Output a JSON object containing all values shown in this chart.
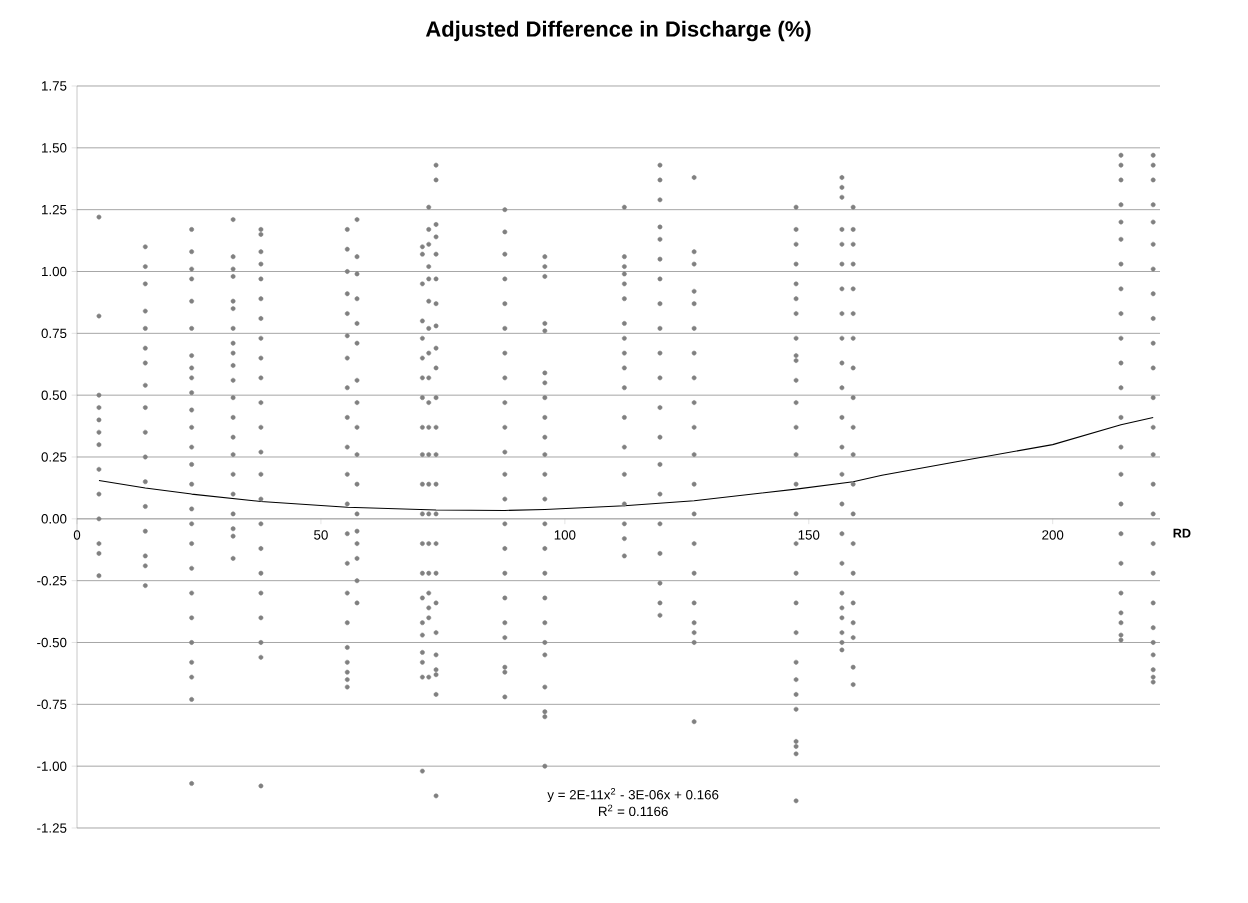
{
  "chart_data": {
    "type": "scatter",
    "title": "Adjusted Difference in Discharge (%)",
    "xlabel": "RD",
    "xlim": [
      0,
      222
    ],
    "xticks": [
      0,
      50,
      100,
      150,
      200
    ],
    "ylim": [
      -1.25,
      1.75
    ],
    "yticks": [
      {
        "value": -1.25,
        "label": "-1.25"
      },
      {
        "value": -1.0,
        "label": "-1.00"
      },
      {
        "value": -0.75,
        "label": "-0.75"
      },
      {
        "value": -0.5,
        "label": "-0.50"
      },
      {
        "value": -0.25,
        "label": "-0.25"
      },
      {
        "value": 0,
        "label": "0.00"
      },
      {
        "value": 0.25,
        "label": "0.25"
      },
      {
        "value": 0.5,
        "label": "0.50"
      },
      {
        "value": 0.75,
        "label": "0.75"
      },
      {
        "value": 1.0,
        "label": "1.00"
      },
      {
        "value": 1.25,
        "label": "1.25"
      },
      {
        "value": 1.5,
        "label": "1.50"
      },
      {
        "value": 1.75,
        "label": "1.75"
      }
    ],
    "grid": "y",
    "marker": "circle",
    "annotations": [
      "y = 2E-11x$^{2}$ - 3E-06x + 0.166",
      "R$^{2}$ = 0.1166"
    ],
    "series": [
      {
        "color": "#808080",
        "x": [
          4.5,
          4.5,
          4.5,
          4.5,
          4.5,
          4.5,
          4.5,
          4.5,
          4.5,
          4.5,
          4.5,
          4.5,
          4.5
        ],
        "values": [
          1.22,
          0.82,
          0.5,
          0.45,
          0.4,
          0.35,
          0.3,
          0.2,
          0.1,
          0.0,
          -0.1,
          -0.14,
          -0.23
        ]
      },
      {
        "color": "#808080",
        "x": [
          14,
          14,
          14,
          14,
          14,
          14,
          14,
          14,
          14,
          14,
          14,
          14,
          14,
          14,
          14,
          14,
          14
        ],
        "values": [
          1.1,
          1.02,
          0.95,
          0.84,
          0.77,
          0.69,
          0.63,
          0.54,
          0.45,
          0.35,
          0.25,
          0.15,
          0.05,
          -0.05,
          -0.15,
          -0.19,
          -0.27
        ]
      },
      {
        "color": "#808080",
        "x": [
          23.5,
          23.5,
          23.5,
          23.5,
          23.5,
          23.5,
          23.5,
          23.5,
          23.5,
          23.5,
          23.5,
          23.5,
          23.5,
          23.5,
          23.5,
          23.5,
          23.5,
          23.5,
          23.5,
          23.5,
          23.5,
          23.5,
          23.5,
          23.5,
          23.5,
          23.5
        ],
        "values": [
          1.17,
          1.08,
          1.01,
          0.97,
          0.88,
          0.77,
          0.66,
          0.61,
          0.57,
          0.51,
          0.44,
          0.37,
          0.29,
          0.22,
          0.14,
          0.04,
          -0.02,
          -0.1,
          -0.2,
          -0.3,
          -0.4,
          -0.5,
          -0.58,
          -0.64,
          -0.73,
          -1.07
        ]
      },
      {
        "color": "#808080",
        "x": [
          32,
          32,
          32,
          32,
          32,
          32,
          32,
          32,
          32,
          32,
          32,
          32,
          32,
          32,
          32,
          32,
          32,
          32,
          32,
          32,
          32
        ],
        "values": [
          1.21,
          1.06,
          1.01,
          0.98,
          0.88,
          0.85,
          0.77,
          0.71,
          0.67,
          0.62,
          0.56,
          0.49,
          0.41,
          0.33,
          0.26,
          0.18,
          0.1,
          0.02,
          -0.04,
          -0.07,
          -0.16
        ]
      },
      {
        "color": "#808080",
        "x": [
          37.7,
          37.7,
          37.7,
          37.7,
          37.7,
          37.7,
          37.7,
          37.7,
          37.7,
          37.7,
          37.7,
          37.7,
          37.7,
          37.7,
          37.7,
          37.7,
          37.7,
          37.7,
          37.7,
          37.7,
          37.7,
          37.7,
          37.7
        ],
        "values": [
          1.17,
          1.15,
          1.08,
          1.03,
          0.97,
          0.89,
          0.81,
          0.73,
          0.65,
          0.57,
          0.47,
          0.37,
          0.27,
          0.18,
          0.08,
          -0.02,
          -0.12,
          -0.22,
          -0.3,
          -0.4,
          -0.5,
          -0.56,
          -1.08
        ]
      },
      {
        "color": "#808080",
        "x": [
          55.4,
          55.4,
          55.4,
          55.4,
          55.4,
          55.4,
          55.4,
          55.4,
          55.4,
          55.4,
          55.4,
          55.4,
          55.4,
          55.4,
          55.4,
          55.4,
          55.4,
          55.4,
          55.4,
          55.4,
          55.4
        ],
        "values": [
          1.17,
          1.09,
          1.0,
          0.91,
          0.83,
          0.74,
          0.65,
          0.53,
          0.41,
          0.29,
          0.18,
          0.06,
          -0.06,
          -0.18,
          -0.3,
          -0.42,
          -0.52,
          -0.58,
          -0.62,
          -0.65,
          -0.68
        ]
      },
      {
        "color": "#808080",
        "x": [
          57.4,
          57.4,
          57.4,
          57.4,
          57.4,
          57.4,
          57.4,
          57.4,
          57.4,
          57.4,
          57.4,
          57.4,
          57.4,
          57.4,
          57.4,
          57.4,
          57.4
        ],
        "values": [
          1.21,
          1.06,
          0.99,
          0.89,
          0.79,
          0.71,
          0.56,
          0.47,
          0.37,
          0.26,
          0.14,
          0.02,
          -0.05,
          -0.1,
          -0.16,
          -0.25,
          -0.34
        ]
      },
      {
        "color": "#808080",
        "x": [
          70.8,
          70.8,
          70.8,
          70.8,
          70.8,
          70.8,
          70.8,
          70.8,
          70.8,
          70.8,
          70.8,
          70.8,
          70.8,
          70.8,
          70.8,
          70.8,
          70.8,
          70.8,
          70.8,
          70.8,
          70.8
        ],
        "values": [
          1.1,
          1.07,
          0.95,
          0.8,
          0.73,
          0.65,
          0.57,
          0.49,
          0.37,
          0.26,
          0.14,
          0.02,
          -0.1,
          -0.22,
          -0.32,
          -0.42,
          -0.47,
          -0.54,
          -0.58,
          -0.64,
          -1.02
        ]
      },
      {
        "color": "#808080",
        "x": [
          72.1,
          72.1,
          72.1,
          72.1,
          72.1,
          72.1,
          72.1,
          72.1,
          72.1,
          72.1,
          72.1,
          72.1,
          72.1,
          72.1,
          72.1,
          72.1,
          72.1,
          72.1,
          72.1,
          72.1
        ],
        "values": [
          1.26,
          1.17,
          1.11,
          1.02,
          0.97,
          0.88,
          0.77,
          0.67,
          0.57,
          0.47,
          0.37,
          0.26,
          0.14,
          0.02,
          -0.1,
          -0.22,
          -0.3,
          -0.36,
          -0.4,
          -0.64
        ]
      },
      {
        "color": "#808080",
        "x": [
          73.6,
          73.6,
          73.6,
          73.6,
          73.6,
          73.6,
          73.6,
          73.6,
          73.6,
          73.6,
          73.6,
          73.6,
          73.6,
          73.6,
          73.6,
          73.6,
          73.6,
          73.6,
          73.6,
          73.6,
          73.6,
          73.6,
          73.6,
          73.6
        ],
        "values": [
          1.43,
          1.37,
          1.19,
          1.14,
          1.07,
          0.97,
          0.87,
          0.78,
          0.69,
          0.61,
          0.49,
          0.37,
          0.26,
          0.14,
          0.02,
          -0.1,
          -0.22,
          -0.34,
          -0.46,
          -0.55,
          -0.61,
          -0.63,
          -0.71,
          -1.12
        ]
      },
      {
        "color": "#808080",
        "x": [
          87.7,
          87.7,
          87.7,
          87.7,
          87.7,
          87.7,
          87.7,
          87.7,
          87.7,
          87.7,
          87.7,
          87.7,
          87.7,
          87.7,
          87.7,
          87.7,
          87.7,
          87.7,
          87.7,
          87.7,
          87.7,
          87.7
        ],
        "values": [
          1.25,
          1.16,
          1.07,
          0.97,
          0.87,
          0.77,
          0.67,
          0.57,
          0.47,
          0.37,
          0.27,
          0.18,
          0.08,
          -0.02,
          -0.12,
          -0.22,
          -0.32,
          -0.42,
          -0.48,
          -0.6,
          -0.62,
          -0.72
        ]
      },
      {
        "color": "#808080",
        "x": [
          95.9,
          95.9,
          95.9,
          95.9,
          95.9,
          95.9,
          95.9,
          95.9,
          95.9,
          95.9,
          95.9,
          95.9,
          95.9,
          95.9,
          95.9,
          95.9,
          95.9,
          95.9,
          95.9,
          95.9,
          95.9,
          95.9,
          95.9,
          95.9
        ],
        "values": [
          1.06,
          1.02,
          0.98,
          0.79,
          0.76,
          0.59,
          0.55,
          0.49,
          0.41,
          0.33,
          0.26,
          0.18,
          0.08,
          -0.02,
          -0.12,
          -0.22,
          -0.32,
          -0.42,
          -0.5,
          -0.55,
          -0.68,
          -0.78,
          -0.8,
          -1.0
        ]
      },
      {
        "color": "#808080",
        "x": [
          112.2,
          112.2,
          112.2,
          112.2,
          112.2,
          112.2,
          112.2,
          112.2,
          112.2,
          112.2,
          112.2,
          112.2,
          112.2,
          112.2,
          112.2,
          112.2,
          112.2,
          112.2
        ],
        "values": [
          1.26,
          1.06,
          1.02,
          0.99,
          0.95,
          0.89,
          0.79,
          0.73,
          0.67,
          0.61,
          0.53,
          0.41,
          0.29,
          0.18,
          0.06,
          -0.02,
          -0.08,
          -0.15
        ]
      },
      {
        "color": "#808080",
        "x": [
          119.5,
          119.5,
          119.5,
          119.5,
          119.5,
          119.5,
          119.5,
          119.5,
          119.5,
          119.5,
          119.5,
          119.5,
          119.5,
          119.5,
          119.5,
          119.5,
          119.5,
          119.5,
          119.5,
          119.5
        ],
        "values": [
          1.43,
          1.37,
          1.29,
          1.18,
          1.13,
          1.05,
          0.97,
          0.87,
          0.77,
          0.67,
          0.57,
          0.45,
          0.33,
          0.22,
          0.1,
          -0.02,
          -0.14,
          -0.26,
          -0.34,
          -0.39
        ]
      },
      {
        "color": "#808080",
        "x": [
          126.5,
          126.5,
          126.5,
          126.5,
          126.5,
          126.5,
          126.5,
          126.5,
          126.5,
          126.5,
          126.5,
          126.5,
          126.5,
          126.5,
          126.5,
          126.5,
          126.5,
          126.5,
          126.5,
          126.5
        ],
        "values": [
          1.38,
          1.08,
          1.03,
          0.92,
          0.87,
          0.77,
          0.67,
          0.57,
          0.47,
          0.37,
          0.26,
          0.14,
          0.02,
          -0.1,
          -0.22,
          -0.34,
          -0.42,
          -0.46,
          -0.5,
          -0.82
        ]
      },
      {
        "color": "#808080",
        "x": [
          147.4,
          147.4,
          147.4,
          147.4,
          147.4,
          147.4,
          147.4,
          147.4,
          147.4,
          147.4,
          147.4,
          147.4,
          147.4,
          147.4,
          147.4,
          147.4,
          147.4,
          147.4,
          147.4,
          147.4,
          147.4,
          147.4,
          147.4,
          147.4,
          147.4,
          147.4,
          147.4,
          147.4
        ],
        "values": [
          1.26,
          1.17,
          1.11,
          1.03,
          0.95,
          0.89,
          0.83,
          0.73,
          0.66,
          0.64,
          0.56,
          0.47,
          0.37,
          0.26,
          0.14,
          0.02,
          -0.1,
          -0.22,
          -0.34,
          -0.46,
          -0.58,
          -0.65,
          -0.71,
          -0.77,
          -0.9,
          -0.92,
          -0.95,
          -1.14
        ]
      },
      {
        "color": "#808080",
        "x": [
          156.8,
          156.8,
          156.8,
          156.8,
          156.8,
          156.8,
          156.8,
          156.8,
          156.8,
          156.8,
          156.8,
          156.8,
          156.8,
          156.8,
          156.8,
          156.8,
          156.8,
          156.8,
          156.8,
          156.8,
          156.8,
          156.8,
          156.8
        ],
        "values": [
          1.38,
          1.34,
          1.3,
          1.17,
          1.11,
          1.03,
          0.93,
          0.83,
          0.73,
          0.63,
          0.53,
          0.41,
          0.29,
          0.18,
          0.06,
          -0.06,
          -0.18,
          -0.3,
          -0.36,
          -0.4,
          -0.46,
          -0.5,
          -0.53
        ]
      },
      {
        "color": "#808080",
        "x": [
          159.1,
          159.1,
          159.1,
          159.1,
          159.1,
          159.1,
          159.1,
          159.1,
          159.1,
          159.1,
          159.1,
          159.1,
          159.1,
          159.1,
          159.1,
          159.1,
          159.1,
          159.1,
          159.1,
          159.1
        ],
        "values": [
          1.26,
          1.17,
          1.11,
          1.03,
          0.93,
          0.83,
          0.73,
          0.61,
          0.49,
          0.37,
          0.26,
          0.14,
          0.02,
          -0.1,
          -0.22,
          -0.34,
          -0.42,
          -0.48,
          -0.6,
          -0.67
        ]
      },
      {
        "color": "#808080",
        "x": [
          214,
          214,
          214,
          214,
          214,
          214,
          214,
          214,
          214,
          214,
          214,
          214,
          214,
          214,
          214,
          214,
          214,
          214,
          214,
          214,
          214,
          214,
          214
        ],
        "values": [
          1.47,
          1.43,
          1.37,
          1.27,
          1.2,
          1.13,
          1.03,
          0.93,
          0.83,
          0.73,
          0.63,
          0.53,
          0.41,
          0.29,
          0.18,
          0.06,
          -0.06,
          -0.18,
          -0.3,
          -0.38,
          -0.42,
          -0.47,
          -0.49
        ]
      },
      {
        "color": "#808080",
        "x": [
          220.6,
          220.6,
          220.6,
          220.6,
          220.6,
          220.6,
          220.6,
          220.6,
          220.6,
          220.6,
          220.6,
          220.6,
          220.6,
          220.6,
          220.6,
          220.6,
          220.6,
          220.6,
          220.6,
          220.6,
          220.6,
          220.6,
          220.6,
          220.6,
          220.6
        ],
        "values": [
          1.47,
          1.43,
          1.37,
          1.27,
          1.2,
          1.11,
          1.01,
          0.91,
          0.81,
          0.71,
          0.61,
          0.49,
          0.37,
          0.26,
          0.14,
          0.02,
          -0.1,
          -0.22,
          -0.34,
          -0.44,
          -0.5,
          -0.55,
          -0.61,
          -0.64,
          -0.66
        ]
      },
      {
        "type": "line",
        "color": "#000000",
        "marker": "none",
        "x": [
          4.5,
          14,
          23.5,
          37.7,
          55.4,
          73.6,
          87.7,
          95.9,
          112.2,
          126.5,
          147.4,
          159.1,
          165,
          180,
          200,
          214,
          220.6
        ],
        "values": [
          0.155,
          0.125,
          0.1,
          0.07,
          0.047,
          0.036,
          0.034,
          0.038,
          0.053,
          0.073,
          0.12,
          0.15,
          0.176,
          0.23,
          0.3,
          0.38,
          0.41
        ]
      }
    ]
  }
}
